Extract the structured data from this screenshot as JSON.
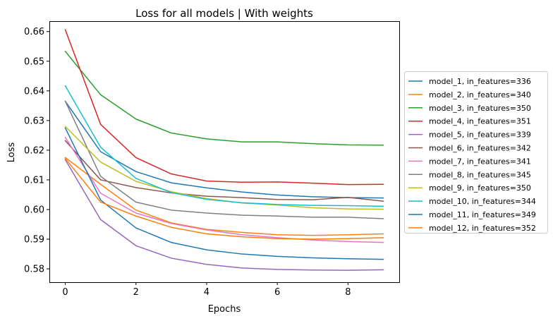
{
  "chart_data": {
    "type": "line",
    "title": "Loss for all models | With weights",
    "xlabel": "Epochs",
    "ylabel": "Loss",
    "xlim": [
      -0.45,
      9.45
    ],
    "ylim": [
      0.5755,
      0.6635
    ],
    "xticks": [
      0,
      2,
      4,
      6,
      8
    ],
    "yticks": [
      0.58,
      0.59,
      0.6,
      0.61,
      0.62,
      0.63,
      0.64,
      0.65,
      0.66
    ],
    "ytick_labels": [
      "0.58",
      "0.59",
      "0.60",
      "0.61",
      "0.62",
      "0.63",
      "0.64",
      "0.65",
      "0.66"
    ],
    "grid": false,
    "legend_position": "outside-right",
    "x": [
      0,
      1,
      2,
      3,
      4,
      5,
      6,
      7,
      8,
      9
    ],
    "series": [
      {
        "name": "model_1, in_features=336",
        "color": "#1f77b4",
        "values": [
          0.6365,
          0.6195,
          0.6128,
          0.609,
          0.6073,
          0.6059,
          0.6049,
          0.6043,
          0.604,
          0.6039
        ]
      },
      {
        "name": "model_2, in_features=340",
        "color": "#ff7f0e",
        "values": [
          0.6175,
          0.6085,
          0.5998,
          0.5955,
          0.5933,
          0.5923,
          0.5915,
          0.5913,
          0.5915,
          0.5918
        ]
      },
      {
        "name": "model_3, in_features=350",
        "color": "#2ca02c",
        "values": [
          0.6533,
          0.6387,
          0.6305,
          0.6258,
          0.6238,
          0.6228,
          0.6228,
          0.6222,
          0.6218,
          0.6217
        ]
      },
      {
        "name": "model_4, in_features=351",
        "color": "#d62728",
        "values": [
          0.6606,
          0.6287,
          0.6175,
          0.612,
          0.6096,
          0.6092,
          0.6093,
          0.6089,
          0.6084,
          0.6085
        ]
      },
      {
        "name": "model_5, in_features=339",
        "color": "#9467bd",
        "values": [
          0.6168,
          0.5966,
          0.5878,
          0.5836,
          0.5815,
          0.5803,
          0.5798,
          0.5796,
          0.5795,
          0.5797
        ]
      },
      {
        "name": "model_6, in_features=342",
        "color": "#8c564b",
        "values": [
          0.6232,
          0.61,
          0.6074,
          0.6056,
          0.6045,
          0.604,
          0.6034,
          0.6033,
          0.6041,
          0.6028
        ]
      },
      {
        "name": "model_7, in_features=341",
        "color": "#e377c2",
        "values": [
          0.6243,
          0.6055,
          0.5988,
          0.5953,
          0.5931,
          0.5915,
          0.5905,
          0.5897,
          0.5892,
          0.5889
        ]
      },
      {
        "name": "model_8, in_features=345",
        "color": "#7f7f7f",
        "values": [
          0.6365,
          0.6112,
          0.6025,
          0.5998,
          0.5988,
          0.5981,
          0.5978,
          0.5974,
          0.5974,
          0.5969
        ]
      },
      {
        "name": "model_9, in_features=350",
        "color": "#bcbd22",
        "values": [
          0.628,
          0.616,
          0.6095,
          0.606,
          0.6037,
          0.6022,
          0.6015,
          0.6006,
          0.6002,
          0.6001
        ]
      },
      {
        "name": "model_10, in_features=344",
        "color": "#17becf",
        "values": [
          0.6417,
          0.621,
          0.6105,
          0.6057,
          0.6034,
          0.6023,
          0.6017,
          0.6014,
          0.6013,
          0.6011
        ]
      },
      {
        "name": "model_11, in_features=349",
        "color": "#1f77b4",
        "values": [
          0.6275,
          0.6032,
          0.5938,
          0.5889,
          0.5864,
          0.585,
          0.5842,
          0.5837,
          0.5834,
          0.5832
        ]
      },
      {
        "name": "model_12, in_features=352",
        "color": "#ff7f0e",
        "values": [
          0.6172,
          0.6025,
          0.5978,
          0.594,
          0.5918,
          0.5908,
          0.5902,
          0.59,
          0.5902,
          0.5905
        ]
      }
    ]
  }
}
